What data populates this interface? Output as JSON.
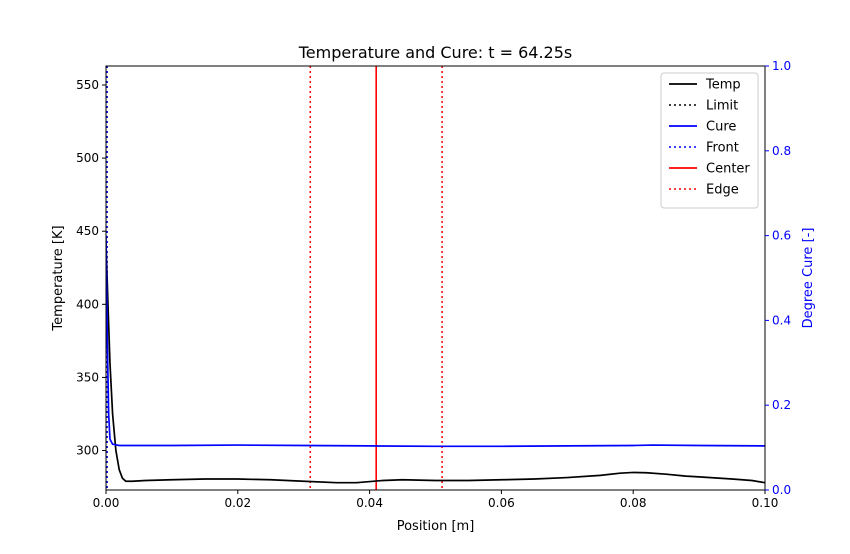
{
  "chart_data": {
    "type": "line",
    "title": "Temperature and Cure: t = 64.25s",
    "xlabel": "Position [m]",
    "ylabel": "Temperature [K]",
    "y2label": "Degree Cure [-]",
    "xlim": [
      0.0,
      0.1
    ],
    "ylim": [
      273,
      563
    ],
    "y2lim": [
      0.0,
      1.0
    ],
    "xticks": [
      0.0,
      0.02,
      0.04,
      0.06,
      0.08,
      0.1
    ],
    "xtick_labels": [
      "0.00",
      "0.02",
      "0.04",
      "0.06",
      "0.08",
      "0.10"
    ],
    "yticks": [
      300,
      350,
      400,
      450,
      500,
      550
    ],
    "ytick_labels": [
      "300",
      "350",
      "400",
      "450",
      "500",
      "550"
    ],
    "y2ticks": [
      0.0,
      0.2,
      0.4,
      0.6,
      0.8,
      1.0
    ],
    "y2tick_labels": [
      "0.0",
      "0.2",
      "0.4",
      "0.6",
      "0.8",
      "1.0"
    ],
    "grid": false,
    "legend_position": "top-right",
    "colors": {
      "temp": "#000000",
      "cure": "#0000ff",
      "center": "#ff0000",
      "edge": "#ff0000",
      "right_axis": "#0000ff"
    },
    "series": [
      {
        "name": "Temp",
        "axis": "left",
        "style": "solid",
        "x": [
          0.0,
          0.0003,
          0.0006,
          0.001,
          0.0015,
          0.002,
          0.0025,
          0.003,
          0.004,
          0.006,
          0.01,
          0.015,
          0.02,
          0.025,
          0.03,
          0.035,
          0.038,
          0.042,
          0.045,
          0.05,
          0.055,
          0.06,
          0.065,
          0.07,
          0.075,
          0.078,
          0.08,
          0.082,
          0.085,
          0.088,
          0.09,
          0.095,
          0.098,
          0.1
        ],
        "y": [
          442,
          400,
          360,
          325,
          300,
          287,
          281,
          279,
          279,
          279.5,
          280,
          280.5,
          280.5,
          280,
          279,
          278,
          278,
          279.5,
          280,
          279.5,
          279.5,
          280,
          280.5,
          281.5,
          283,
          284.5,
          285,
          284.8,
          283.8,
          282.5,
          282,
          280.5,
          279.5,
          278
        ]
      },
      {
        "name": "Cure",
        "axis": "right",
        "style": "solid",
        "x": [
          0.0,
          0.0002,
          0.0004,
          0.0006,
          0.001,
          0.002,
          0.005,
          0.01,
          0.02,
          0.03,
          0.04,
          0.05,
          0.06,
          0.07,
          0.08,
          0.083,
          0.09,
          0.1
        ],
        "y": [
          0.6,
          0.35,
          0.18,
          0.12,
          0.108,
          0.105,
          0.105,
          0.105,
          0.106,
          0.105,
          0.104,
          0.103,
          0.103,
          0.104,
          0.105,
          0.106,
          0.105,
          0.104
        ]
      }
    ],
    "vertical_lines": [
      {
        "name": "Limit",
        "x": 0.0,
        "style": "dotted",
        "color": "#000000"
      },
      {
        "name": "Front",
        "x": 0.0,
        "style": "dotted",
        "color": "#0000ff"
      },
      {
        "name": "Center",
        "x": 0.041,
        "style": "solid",
        "color": "#ff0000"
      },
      {
        "name": "Edge",
        "x": 0.031,
        "style": "dotted",
        "color": "#ff0000"
      },
      {
        "name": "Edge",
        "x": 0.051,
        "style": "dotted",
        "color": "#ff0000"
      }
    ],
    "legend": [
      {
        "label": "Temp",
        "color": "#000000",
        "style": "solid"
      },
      {
        "label": "Limit",
        "color": "#000000",
        "style": "dotted"
      },
      {
        "label": "Cure",
        "color": "#0000ff",
        "style": "solid"
      },
      {
        "label": "Front",
        "color": "#0000ff",
        "style": "dotted"
      },
      {
        "label": "Center",
        "color": "#ff0000",
        "style": "solid"
      },
      {
        "label": "Edge",
        "color": "#ff0000",
        "style": "dotted"
      }
    ]
  }
}
